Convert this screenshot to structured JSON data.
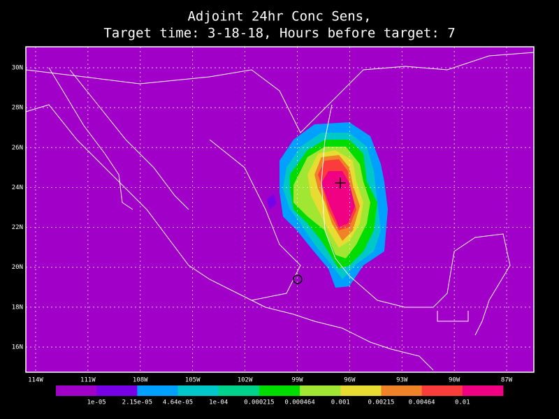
{
  "title": {
    "line1": "Adjoint 24hr Conc Sens,",
    "line2": "Target time: 3-18-18, Hours before target: 7"
  },
  "map": {
    "xlim": [
      -114.56,
      -85.44
    ],
    "ylim": [
      14.74,
      31.05
    ],
    "grid": true,
    "xticks": [
      {
        "value": -114,
        "label": "114W"
      },
      {
        "value": -111,
        "label": "111W"
      },
      {
        "value": -108,
        "label": "108W"
      },
      {
        "value": -105,
        "label": "105W"
      },
      {
        "value": -102,
        "label": "102W"
      },
      {
        "value": -99,
        "label": "99W"
      },
      {
        "value": -96,
        "label": "96W"
      },
      {
        "value": -93,
        "label": "93W"
      },
      {
        "value": -90,
        "label": "90W"
      },
      {
        "value": -87,
        "label": "87W"
      }
    ],
    "yticks": [
      {
        "value": 16,
        "label": "16N"
      },
      {
        "value": 18,
        "label": "18N"
      },
      {
        "value": 20,
        "label": "20N"
      },
      {
        "value": 22,
        "label": "22N"
      },
      {
        "value": 24,
        "label": "24N"
      },
      {
        "value": 26,
        "label": "26N"
      },
      {
        "value": 28,
        "label": "28N"
      },
      {
        "value": 30,
        "label": "30N"
      }
    ]
  },
  "colorbar": {
    "colors": [
      "#a000c8",
      "#7800e6",
      "#00a0ff",
      "#00c8c8",
      "#00d28c",
      "#00dc00",
      "#a0e632",
      "#e6dc32",
      "#f08228",
      "#fa3c3c",
      "#f00082"
    ],
    "levels": [
      {
        "value": 1e-05,
        "label": "1e-05"
      },
      {
        "value": 2.15e-05,
        "label": "2.15e-05"
      },
      {
        "value": 4.64e-05,
        "label": "4.64e-05"
      },
      {
        "value": 0.0001,
        "label": "1e-04"
      },
      {
        "value": 0.000215,
        "label": "0.000215"
      },
      {
        "value": 0.000464,
        "label": "0.000464"
      },
      {
        "value": 0.001,
        "label": "0.001"
      },
      {
        "value": 0.00215,
        "label": "0.00215"
      },
      {
        "value": 0.00464,
        "label": "0.00464"
      },
      {
        "value": 0.01,
        "label": "0.01"
      }
    ]
  }
}
